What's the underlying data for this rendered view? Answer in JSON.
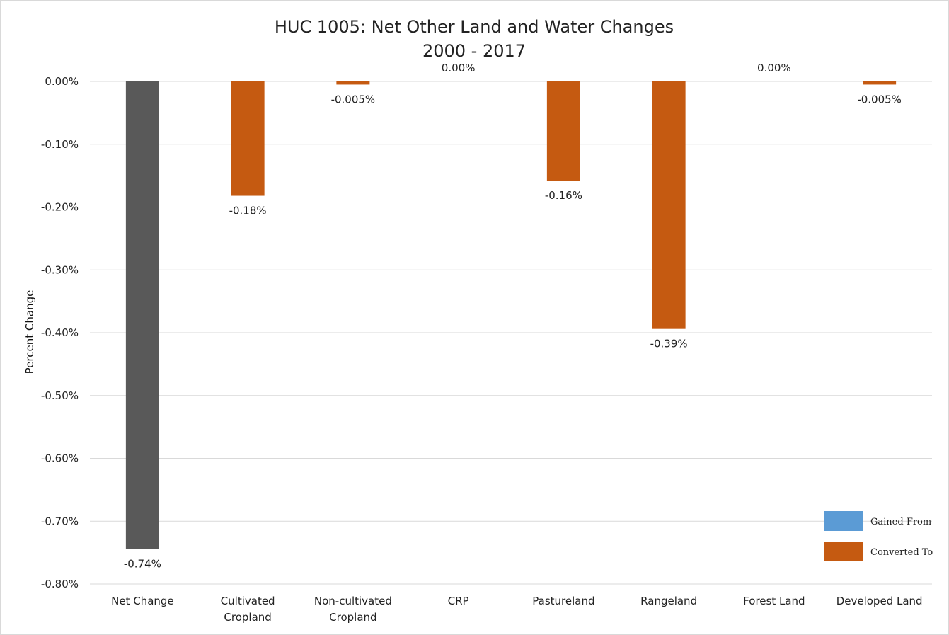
{
  "chart_data": {
    "type": "bar",
    "title": "HUC 1005: Net Other Land and Water Changes",
    "subtitle": "2000 - 2017",
    "xlabel": "",
    "ylabel": "Percent Change",
    "ylim": [
      -0.8,
      0.0
    ],
    "yticks": [
      0.0,
      -0.1,
      -0.2,
      -0.3,
      -0.4,
      -0.5,
      -0.6,
      -0.7,
      -0.8
    ],
    "ytick_labels": [
      "0.00%",
      "-0.10%",
      "-0.20%",
      "-0.30%",
      "-0.40%",
      "-0.50%",
      "-0.60%",
      "-0.70%",
      "-0.80%"
    ],
    "grid": true,
    "categories": [
      [
        "Net Change"
      ],
      [
        "Cultivated",
        "Cropland"
      ],
      [
        "Non-cultivated",
        "Cropland"
      ],
      [
        "CRP"
      ],
      [
        "Pastureland"
      ],
      [
        "Rangeland"
      ],
      [
        "Forest Land"
      ],
      [
        "Developed Land"
      ]
    ],
    "values": [
      -0.744,
      -0.182,
      -0.005,
      0.0,
      -0.158,
      -0.394,
      0.0,
      -0.005
    ],
    "data_labels": [
      "-0.74%",
      "-0.18%",
      "-0.005%",
      "0.00%",
      "-0.16%",
      "-0.39%",
      "0.00%",
      "-0.005%"
    ],
    "bar_colors": [
      "#595959",
      "#c55a11",
      "#c55a11",
      "#c55a11",
      "#c55a11",
      "#c55a11",
      "#c55a11",
      "#c55a11"
    ],
    "legend": {
      "position": "bottom-right",
      "items": [
        {
          "label": "Gained From",
          "color": "#5b9bd5"
        },
        {
          "label": "Converted To",
          "color": "#c55a11"
        }
      ]
    }
  }
}
